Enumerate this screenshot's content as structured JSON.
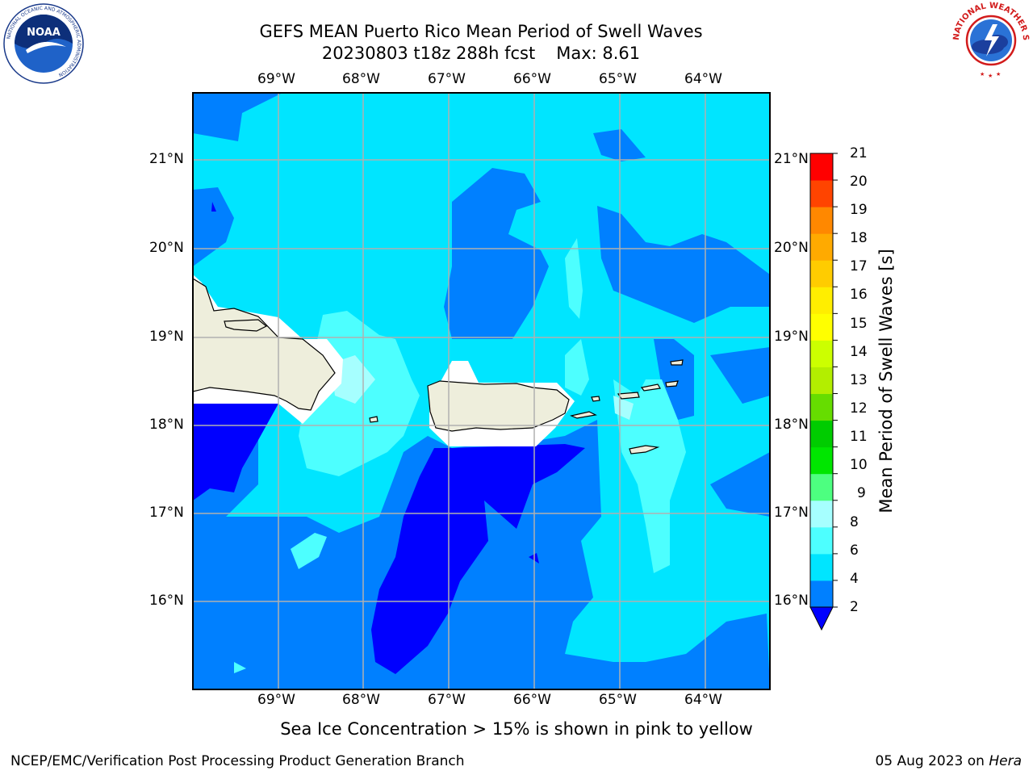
{
  "title": {
    "line1": "GEFS MEAN Puerto Rico Mean Period of Swell Waves",
    "line2_run": "20230803 t18z 288h fcst",
    "line2_max": "Max: 8.61"
  },
  "logos": {
    "left": "noaa-logo",
    "left_text": "NOAA",
    "left_ring_text": "NATIONAL OCEANIC AND ATMOSPHERIC ADMINISTRATION",
    "left_ring_bottom": "U.S. DEPARTMENT OF COMMERCE",
    "right": "nws-logo",
    "right_ring_text": "NATIONAL WEATHER SERVICE"
  },
  "map": {
    "lon_labels": [
      "69°W",
      "68°W",
      "67°W",
      "66°W",
      "65°W",
      "64°W"
    ],
    "lat_labels": [
      "21°N",
      "20°N",
      "19°N",
      "18°N",
      "17°N",
      "16°N"
    ],
    "lon_range": [
      -70.0,
      -63.25
    ],
    "lat_range": [
      15.0,
      21.75
    ],
    "gridlines": true,
    "field": "Mean Period of Swell Waves",
    "land_color": "#eeeedc"
  },
  "colorbar": {
    "label": "Mean Period of Swell Waves [s]",
    "ticks": [
      "21",
      "20",
      "19",
      "18",
      "17",
      "16",
      "15",
      "14",
      "13",
      "12",
      "11",
      "10",
      "9",
      "8",
      "6",
      "4",
      "2"
    ],
    "levels": [
      2,
      4,
      6,
      8,
      9,
      10,
      11,
      12,
      13,
      14,
      15,
      16,
      17,
      18,
      19,
      20,
      21
    ],
    "colors": [
      "#0080ff",
      "#00e5ff",
      "#4dffff",
      "#a6ffff",
      "#4dff80",
      "#00e600",
      "#00cc00",
      "#66dd00",
      "#b3ee00",
      "#ccff00",
      "#ffff00",
      "#ffee00",
      "#ffcc00",
      "#ffaa00",
      "#ff8800",
      "#ff4400",
      "#ff0000"
    ],
    "under_color": "#0000ff"
  },
  "footnote": "Sea Ice Concentration > 15% is shown in pink to yellow",
  "credit": {
    "left": "NCEP/EMC/Verification Post Processing Product Generation Branch",
    "date": "05 Aug 2023 on",
    "machine": "Hera"
  }
}
